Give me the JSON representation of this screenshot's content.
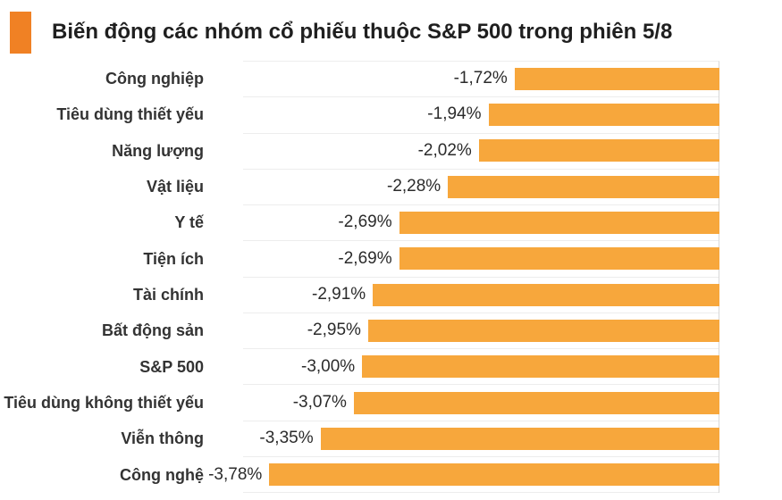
{
  "header": {
    "title": "Biến động các nhóm cổ phiếu thuộc S&P 500 trong phiên 5/8",
    "accent_color": "#F08124"
  },
  "chart_data": {
    "type": "bar",
    "orientation": "horizontal",
    "title": "Biến động các nhóm cổ phiếu thuộc S&P 500 trong phiên 5/8",
    "categories": [
      "Công nghiệp",
      "Tiêu dùng thiết yếu",
      "Năng lượng",
      "Vật liệu",
      "Y tế",
      "Tiện ích",
      "Tài chính",
      "Bất động sản",
      "S&P 500",
      "Tiêu dùng không thiết yếu",
      "Viễn thông",
      "Công nghệ"
    ],
    "values": [
      -1.72,
      -1.94,
      -2.02,
      -2.28,
      -2.69,
      -2.69,
      -2.91,
      -2.95,
      -3.0,
      -3.07,
      -3.35,
      -3.78
    ],
    "value_labels": [
      "-1,72%",
      "-1,94%",
      "-2,02%",
      "-2,28%",
      "-2,69%",
      "-2,69%",
      "-2,91%",
      "-2,95%",
      "-3,00%",
      "-3,07%",
      "-3,35%",
      "-3,78%"
    ],
    "xlabel": "",
    "ylabel": "",
    "xlim": [
      -4,
      0
    ],
    "grid": true,
    "legend": false,
    "bar_color": "#F7A73C",
    "gridline_color": "#EDEDED",
    "axis_line_color": "#D8D8D8"
  }
}
